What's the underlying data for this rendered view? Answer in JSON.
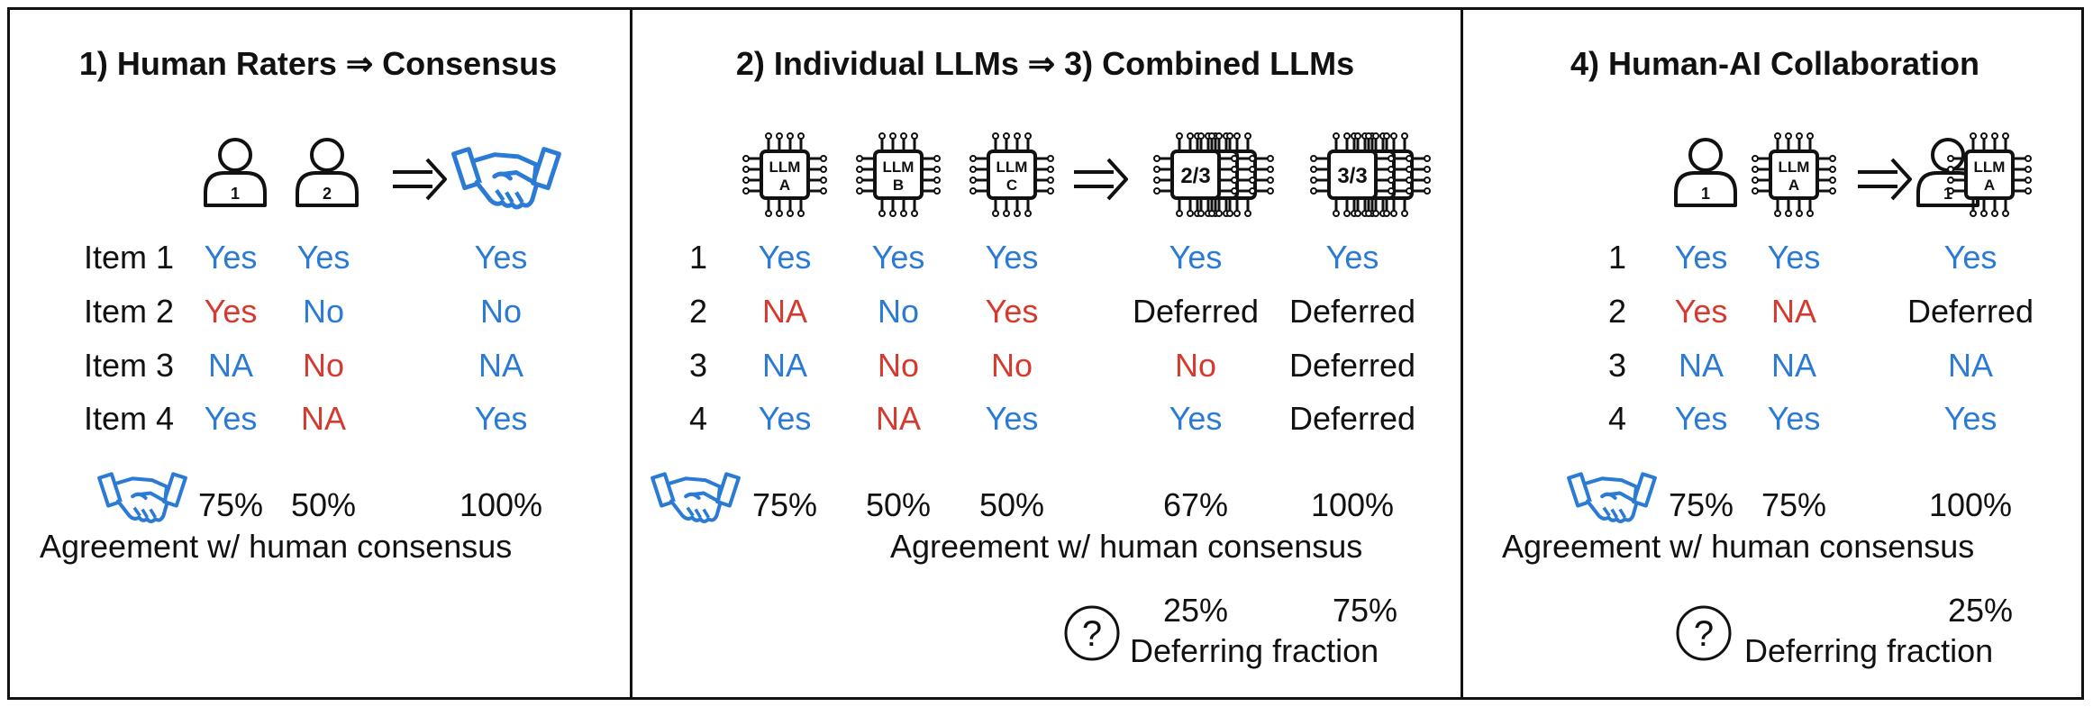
{
  "colors": {
    "positive": "#2b7bd6",
    "negative": "#d63a2f",
    "ink": "#111111"
  },
  "panel1": {
    "title": "1) Human Raters ⇒ Consensus",
    "rater_badges": [
      "1",
      "2"
    ],
    "rows": [
      {
        "label": "Item 1",
        "cells": [
          [
            "Yes",
            "blue"
          ],
          [
            "Yes",
            "blue"
          ],
          [
            "Yes",
            "blue"
          ]
        ]
      },
      {
        "label": "Item 2",
        "cells": [
          [
            "Yes",
            "red"
          ],
          [
            "No",
            "blue"
          ],
          [
            "No",
            "blue"
          ]
        ]
      },
      {
        "label": "Item 3",
        "cells": [
          [
            "NA",
            "blue"
          ],
          [
            "No",
            "red"
          ],
          [
            "NA",
            "blue"
          ]
        ]
      },
      {
        "label": "Item 4",
        "cells": [
          [
            "Yes",
            "blue"
          ],
          [
            "NA",
            "red"
          ],
          [
            "Yes",
            "blue"
          ]
        ]
      }
    ],
    "agreement": [
      "75%",
      "50%",
      "100%"
    ],
    "agreement_caption": "Agreement w/ human consensus"
  },
  "panel2": {
    "title": "2) Individual LLMs ⇒ 3) Combined LLMs",
    "chips": [
      {
        "line1": "LLM",
        "line2": "A"
      },
      {
        "line1": "LLM",
        "line2": "B"
      },
      {
        "line1": "LLM",
        "line2": "C"
      }
    ],
    "combined": [
      "2/3",
      "3/3"
    ],
    "rows": [
      {
        "label": "1",
        "cells": [
          [
            "Yes",
            "blue"
          ],
          [
            "Yes",
            "blue"
          ],
          [
            "Yes",
            "blue"
          ],
          [
            "Yes",
            "blue"
          ],
          [
            "Yes",
            "blue"
          ]
        ]
      },
      {
        "label": "2",
        "cells": [
          [
            "NA",
            "red"
          ],
          [
            "No",
            "blue"
          ],
          [
            "Yes",
            "red"
          ],
          [
            "Deferred",
            "black"
          ],
          [
            "Deferred",
            "black"
          ]
        ]
      },
      {
        "label": "3",
        "cells": [
          [
            "NA",
            "blue"
          ],
          [
            "No",
            "red"
          ],
          [
            "No",
            "red"
          ],
          [
            "No",
            "red"
          ],
          [
            "Deferred",
            "black"
          ]
        ]
      },
      {
        "label": "4",
        "cells": [
          [
            "Yes",
            "blue"
          ],
          [
            "NA",
            "red"
          ],
          [
            "Yes",
            "blue"
          ],
          [
            "Yes",
            "blue"
          ],
          [
            "Deferred",
            "black"
          ]
        ]
      }
    ],
    "agreement": [
      "75%",
      "50%",
      "50%",
      "67%",
      "100%"
    ],
    "agreement_caption": "Agreement w/ human consensus",
    "deferring": [
      "25%",
      "75%"
    ],
    "deferring_caption": "Deferring fraction",
    "question_mark": "?"
  },
  "panel3": {
    "title": "4) Human-AI Collaboration",
    "human_badge": "1",
    "chip": {
      "line1": "LLM",
      "line2": "A"
    },
    "rows": [
      {
        "label": "1",
        "cells": [
          [
            "Yes",
            "blue"
          ],
          [
            "Yes",
            "blue"
          ],
          [
            "Yes",
            "blue"
          ]
        ]
      },
      {
        "label": "2",
        "cells": [
          [
            "Yes",
            "red"
          ],
          [
            "NA",
            "red"
          ],
          [
            "Deferred",
            "black"
          ]
        ]
      },
      {
        "label": "3",
        "cells": [
          [
            "NA",
            "blue"
          ],
          [
            "NA",
            "blue"
          ],
          [
            "NA",
            "blue"
          ]
        ]
      },
      {
        "label": "4",
        "cells": [
          [
            "Yes",
            "blue"
          ],
          [
            "Yes",
            "blue"
          ],
          [
            "Yes",
            "blue"
          ]
        ]
      }
    ],
    "agreement": [
      "75%",
      "75%",
      "100%"
    ],
    "agreement_caption": "Agreement w/ human consensus",
    "deferring": [
      "25%"
    ],
    "deferring_caption": "Deferring fraction",
    "question_mark": "?"
  }
}
